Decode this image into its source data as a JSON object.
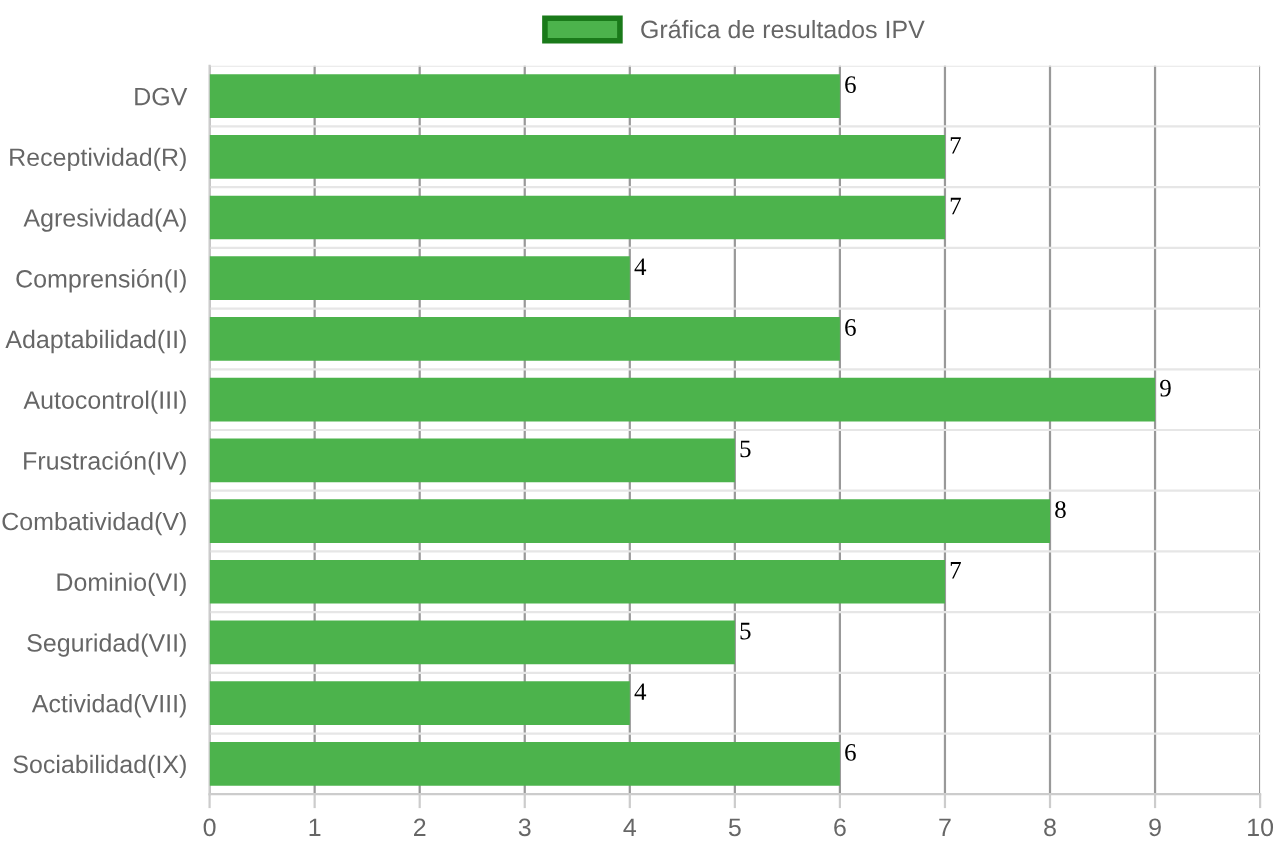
{
  "chart_data": {
    "type": "bar",
    "orientation": "horizontal",
    "categories": [
      "DGV",
      "Receptividad(R)",
      "Agresividad(A)",
      "Comprensión(I)",
      "Adaptabilidad(II)",
      "Autocontrol(III)",
      "Frustración(IV)",
      "Combatividad(V)",
      "Dominio(VI)",
      "Seguridad(VII)",
      "Actividad(VIII)",
      "Sociabilidad(IX)"
    ],
    "series": [
      {
        "name": "Gráfica de resultados IPV",
        "color": "#4cb34c",
        "values": [
          6,
          7,
          7,
          4,
          6,
          9,
          5,
          8,
          7,
          5,
          4,
          6
        ]
      }
    ],
    "xlim": [
      0,
      10
    ],
    "xticks": [
      0,
      1,
      2,
      3,
      4,
      5,
      6,
      7,
      8,
      9,
      10
    ],
    "grid": true,
    "legend": "top",
    "data_labels": true
  }
}
